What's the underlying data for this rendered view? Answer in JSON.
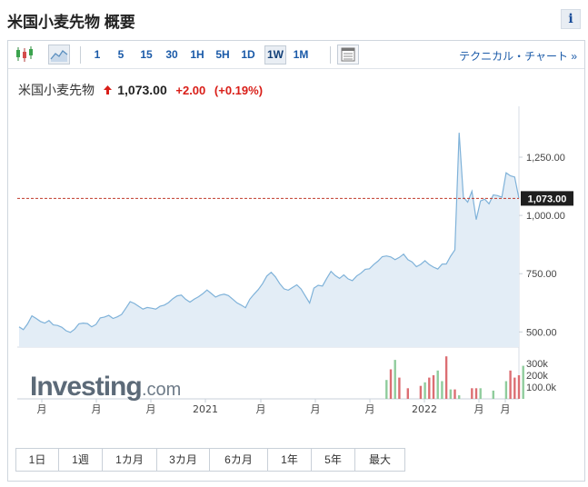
{
  "page": {
    "title": "米国小麦先物 概要",
    "info_label": "i"
  },
  "toolbar": {
    "candlestick_icon": "candlestick-icon",
    "area_icon": "area-chart-icon",
    "table_icon": "data-table-icon",
    "timeframes": [
      {
        "label": "1",
        "active": false
      },
      {
        "label": "5",
        "active": false
      },
      {
        "label": "15",
        "active": false
      },
      {
        "label": "30",
        "active": false
      },
      {
        "label": "1H",
        "active": false
      },
      {
        "label": "5H",
        "active": false
      },
      {
        "label": "1D",
        "active": false
      },
      {
        "label": "1W",
        "active": true
      },
      {
        "label": "1M",
        "active": false
      }
    ],
    "technical_link": "テクニカル・チャート »"
  },
  "quote": {
    "name": "米国小麦先物",
    "price": "1,073.00",
    "change": "+2.00",
    "change_pct": "(+0.19%)"
  },
  "range_buttons": [
    "1日",
    "1週",
    "1カ月",
    "3カ月",
    "6カ月",
    "1年",
    "5年",
    "最大"
  ],
  "watermark": {
    "brand": "Investing",
    "suffix": ".com"
  },
  "colors": {
    "line": "#7fb2d9",
    "area": "#e3edf6",
    "current_line": "#c0392b",
    "price_badge": "#1f1f1f",
    "vol_up": "#8fcc9c",
    "vol_down": "#dc6e73",
    "accent": "#1a5aa8",
    "change": "#d91e18"
  },
  "chart_data": {
    "type": "line",
    "title": "",
    "xlabel": "",
    "ylabel": "",
    "x_tick_labels": [
      "月",
      "月",
      "月",
      "2021",
      "月",
      "月",
      "月",
      "2022",
      "月",
      "月"
    ],
    "y_ticks": [
      500,
      750,
      1000,
      1250
    ],
    "y_tick_labels": [
      "500.00",
      "750.00",
      "1,000.00",
      "1,250.00"
    ],
    "ylim": [
      435,
      1445
    ],
    "current_value": 1073,
    "current_label": "1,073.00",
    "grid": false,
    "series": [
      {
        "values": [
          522,
          510,
          535,
          569,
          558,
          545,
          538,
          549,
          530,
          528,
          520,
          505,
          498,
          512,
          535,
          538,
          536,
          522,
          532,
          560,
          564,
          571,
          558,
          565,
          575,
          602,
          630,
          622,
          610,
          598,
          605,
          602,
          598,
          610,
          615,
          626,
          643,
          655,
          658,
          640,
          628,
          641,
          651,
          664,
          680,
          665,
          650,
          658,
          662,
          656,
          641,
          625,
          615,
          604,
          640,
          662,
          682,
          707,
          740,
          756,
          736,
          707,
          685,
          679,
          691,
          702,
          684,
          654,
          624,
          688,
          700,
          697,
          730,
          760,
          742,
          730,
          745,
          728,
          720,
          740,
          752,
          769,
          771,
          789,
          804,
          823,
          826,
          822,
          810,
          820,
          834,
          810,
          800,
          780,
          790,
          806,
          789,
          778,
          770,
          791,
          792,
          825,
          852,
          1355,
          1078,
          1057,
          1104,
          982,
          1062,
          1070,
          1050,
          1088,
          1085,
          1078,
          1183,
          1170,
          1165,
          1073
        ]
      }
    ],
    "volume": {
      "ticks": [
        "300k",
        "200k",
        "100.0k"
      ],
      "bars": [
        {
          "index": 86,
          "value": 160000,
          "dir": "up"
        },
        {
          "index": 87,
          "value": 250000,
          "dir": "down"
        },
        {
          "index": 88,
          "value": 330000,
          "dir": "up"
        },
        {
          "index": 89,
          "value": 180000,
          "dir": "down"
        },
        {
          "index": 91,
          "value": 90000,
          "dir": "down"
        },
        {
          "index": 94,
          "value": 110000,
          "dir": "down"
        },
        {
          "index": 95,
          "value": 140000,
          "dir": "up"
        },
        {
          "index": 96,
          "value": 180000,
          "dir": "down"
        },
        {
          "index": 97,
          "value": 200000,
          "dir": "down"
        },
        {
          "index": 98,
          "value": 240000,
          "dir": "up"
        },
        {
          "index": 99,
          "value": 150000,
          "dir": "up"
        },
        {
          "index": 100,
          "value": 360000,
          "dir": "down"
        },
        {
          "index": 101,
          "value": 80000,
          "dir": "up"
        },
        {
          "index": 102,
          "value": 80000,
          "dir": "down"
        },
        {
          "index": 103,
          "value": 30000,
          "dir": "up"
        },
        {
          "index": 106,
          "value": 90000,
          "dir": "down"
        },
        {
          "index": 107,
          "value": 90000,
          "dir": "down"
        },
        {
          "index": 108,
          "value": 90000,
          "dir": "up"
        },
        {
          "index": 111,
          "value": 70000,
          "dir": "up"
        },
        {
          "index": 114,
          "value": 150000,
          "dir": "up"
        },
        {
          "index": 115,
          "value": 240000,
          "dir": "down"
        },
        {
          "index": 116,
          "value": 180000,
          "dir": "down"
        },
        {
          "index": 117,
          "value": 200000,
          "dir": "down"
        },
        {
          "index": 118,
          "value": 280000,
          "dir": "up"
        }
      ]
    }
  }
}
